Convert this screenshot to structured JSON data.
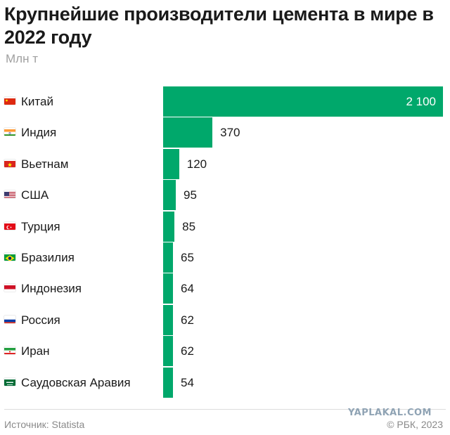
{
  "chart_data": {
    "type": "bar",
    "orientation": "horizontal",
    "title": "Крупнейшие производители цемента в мире в 2022 году",
    "unit": "Млн т",
    "categories": [
      "Китай",
      "Индия",
      "Вьетнам",
      "США",
      "Турция",
      "Бразилия",
      "Индонезия",
      "Россия",
      "Иран",
      "Саудовская Аравия"
    ],
    "values": [
      2100,
      370,
      120,
      95,
      85,
      65,
      64,
      62,
      62,
      54
    ],
    "value_labels": [
      "2 100",
      "370",
      "120",
      "95",
      "85",
      "65",
      "64",
      "62",
      "62",
      "54"
    ],
    "flags": [
      "china-flag-icon",
      "india-flag-icon",
      "vietnam-flag-icon",
      "usa-flag-icon",
      "turkey-flag-icon",
      "brazil-flag-icon",
      "indonesia-flag-icon",
      "russia-flag-icon",
      "iran-flag-icon",
      "saudi-arabia-flag-icon"
    ],
    "bar_color": "#00a86b",
    "xlim": [
      0,
      2100
    ],
    "grid": false,
    "legend": "none"
  },
  "footer": {
    "source": "Источник: Statista",
    "copyright": "© РБК, 2023",
    "watermark": "YAPLAKAL.COM"
  }
}
